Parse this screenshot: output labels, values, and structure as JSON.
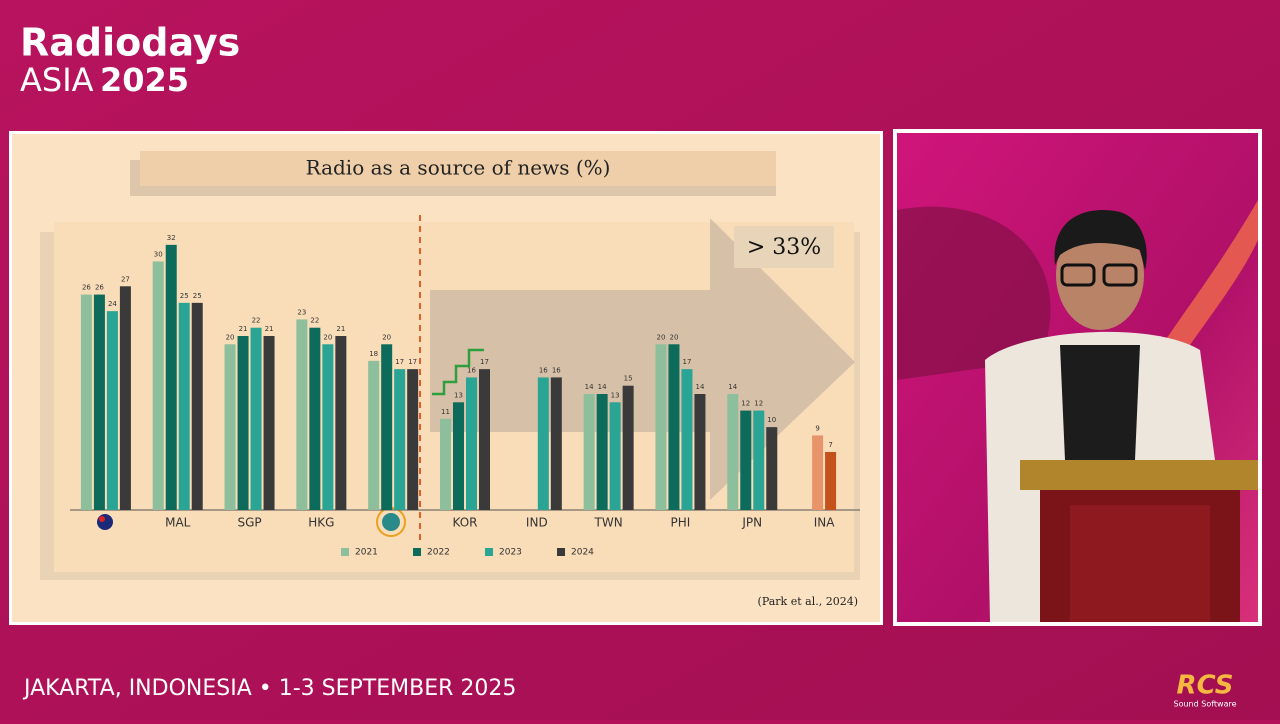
{
  "header": {
    "brand": "Radiodays",
    "region": "ASIA",
    "year": "2025"
  },
  "footer": {
    "event": "JAKARTA, INDONESIA • 1-3 SEPTEMBER 2025",
    "logo": "RCS",
    "logo_sub": "Sound Software"
  },
  "chart_data": {
    "type": "bar",
    "title": "Radio as a source of news (%)",
    "annotation": "> 33%",
    "source": "(Park et al., 2024)",
    "categories": [
      null,
      "MAL",
      "SGP",
      "HKG",
      null,
      "KOR",
      "IND",
      "TWN",
      "PHI",
      "JPN",
      "INA"
    ],
    "series": [
      {
        "name": "2021",
        "color": "#8dbf9c",
        "values": [
          26,
          30,
          20,
          23,
          18,
          11,
          null,
          14,
          20,
          14,
          null
        ]
      },
      {
        "name": "2022",
        "color": "#0d6b5c",
        "values": [
          26,
          32,
          21,
          22,
          20,
          13,
          null,
          14,
          20,
          12,
          9
        ]
      },
      {
        "name": "2023",
        "color": "#2aa595",
        "values": [
          24,
          25,
          22,
          20,
          17,
          16,
          16,
          13,
          17,
          12,
          7
        ]
      },
      {
        "name": "2024",
        "color": "#3a3a3a",
        "values": [
          27,
          25,
          21,
          21,
          17,
          17,
          16,
          15,
          14,
          10,
          null
        ]
      }
    ],
    "highlight_index": 10,
    "highlight_colors": [
      "#e8946a",
      "#c4521c"
    ],
    "ylim": [
      0,
      35
    ],
    "data_labels": true,
    "legend": "bottom"
  }
}
